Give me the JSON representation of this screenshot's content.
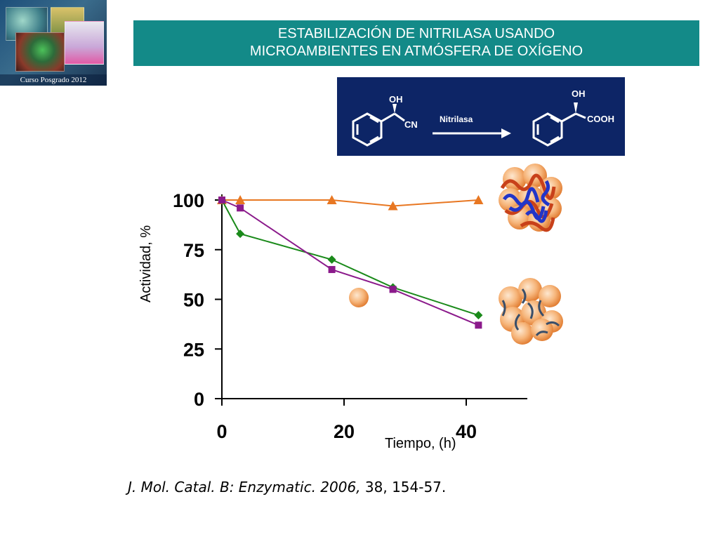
{
  "logo": {
    "caption": "Curso Posgrado 2012"
  },
  "title": {
    "line1": "ESTABILIZACIÓN DE NITRILASA USANDO",
    "line2": "MICROAMBIENTES EN ATMÓSFERA DE OXÍGENO"
  },
  "reaction": {
    "reactant_oh": "OH",
    "reactant_cn": "CN",
    "enzyme": "Nitrilasa",
    "product_oh": "OH",
    "product_cooh": "COOH"
  },
  "citation": {
    "journal": "J. Mol. Catal. B: Enzymatic. 2006,",
    "rest": " 38, 154-57."
  },
  "chart_data": {
    "type": "line",
    "title": "",
    "xlabel": "Tiempo, (h)",
    "ylabel": "Actividad, %",
    "xlim": [
      0,
      50
    ],
    "ylim": [
      0,
      100
    ],
    "x_ticks": [
      0,
      20,
      40
    ],
    "y_ticks": [
      0,
      25,
      50,
      75,
      100
    ],
    "grid": false,
    "series": [
      {
        "color": "#e87722",
        "marker": "triangle",
        "x": [
          0,
          3,
          18,
          28,
          42
        ],
        "y": [
          100,
          100,
          100,
          97,
          100
        ]
      },
      {
        "color": "#1a8a1a",
        "marker": "diamond",
        "x": [
          0,
          3,
          18,
          28,
          42
        ],
        "y": [
          100,
          83,
          70,
          56,
          42
        ]
      },
      {
        "color": "#8b1a8b",
        "marker": "square",
        "x": [
          0,
          3,
          18,
          28,
          42
        ],
        "y": [
          100,
          96,
          65,
          55,
          37
        ]
      }
    ]
  },
  "colors": {
    "title_bar": "#138a88",
    "reaction_bg": "#0d2566",
    "bead": "#f3a361"
  }
}
